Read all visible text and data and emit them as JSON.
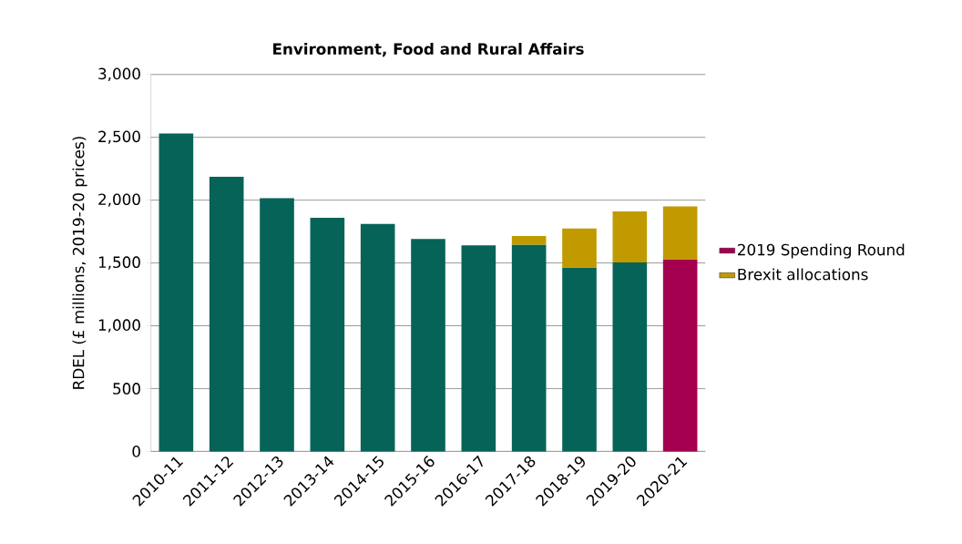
{
  "chart_data": {
    "type": "bar",
    "title": "Environment, Food and Rural Affairs",
    "ylabel": "RDEL (£ millions, 2019-20 prices)",
    "categories": [
      "2010-11",
      "2011-12",
      "2012-13",
      "2013-14",
      "2014-15",
      "2015-16",
      "2016-17",
      "2017-18",
      "2018-19",
      "2019-20",
      "2020-21"
    ],
    "stacked": true,
    "series": [
      {
        "color": "#066358",
        "values": [
          2530,
          2185,
          2015,
          1860,
          1810,
          1690,
          1640,
          1645,
          1465,
          1505,
          null
        ]
      },
      {
        "name": "2019 Spending Round",
        "color": "#a50050",
        "values": [
          null,
          null,
          null,
          null,
          null,
          null,
          null,
          null,
          null,
          null,
          1530
        ]
      },
      {
        "name": "Brexit allocations",
        "color": "#c19a00",
        "values": [
          null,
          null,
          null,
          null,
          null,
          null,
          null,
          70,
          310,
          405,
          420
        ]
      }
    ],
    "ylim": [
      0,
      3000
    ],
    "yticks": [
      0,
      500,
      {
        "value": 1000,
        "label": "1,000"
      },
      {
        "value": 1500,
        "label": "1,500"
      },
      {
        "value": 2000,
        "label": "2,000"
      },
      {
        "value": 2500,
        "label": "2,500"
      },
      {
        "value": 3000,
        "label": "3,000"
      }
    ],
    "grid": "y",
    "legend": "right"
  }
}
